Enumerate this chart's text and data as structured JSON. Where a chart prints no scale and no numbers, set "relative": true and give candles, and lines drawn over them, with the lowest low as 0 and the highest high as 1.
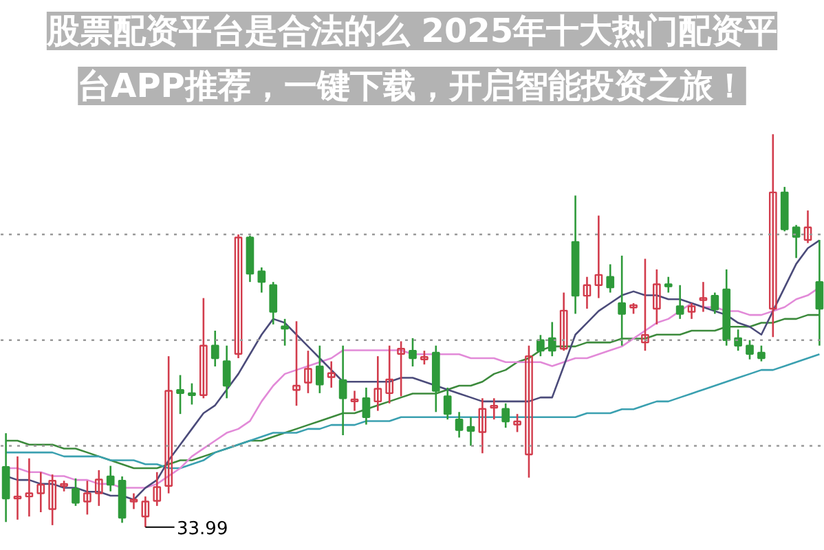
{
  "chart_data": {
    "type": "candlestick",
    "relative": true,
    "title": "股票配资平台是合法的么 2025年十大热门配资平台APP推荐，一键下载，开启智能投资之旅！",
    "categories": [
      null,
      null,
      null,
      null,
      null,
      null,
      null,
      null,
      null,
      null,
      null,
      null,
      null,
      null,
      null,
      null,
      null,
      null,
      null,
      null,
      null,
      null,
      null,
      null,
      null,
      null,
      null,
      null,
      null,
      null,
      null,
      null,
      null,
      null,
      null,
      null,
      null,
      null,
      null,
      null,
      null,
      null,
      null,
      null,
      null,
      null,
      null,
      null,
      null,
      null,
      null,
      null,
      null,
      null,
      null,
      null,
      null,
      null,
      null,
      null,
      null,
      null,
      null,
      null,
      null,
      null,
      null,
      null,
      null,
      null,
      null
    ],
    "ohlc": [
      [
        0.153,
        0.239,
        0.013,
        0.073
      ],
      [
        0.073,
        0.18,
        0.019,
        0.078
      ],
      [
        0.078,
        0.175,
        0.027,
        0.086
      ],
      [
        0.086,
        0.14,
        0.038,
        0.108
      ],
      [
        0.046,
        0.134,
        0.005,
        0.118
      ],
      [
        0.105,
        0.118,
        0.091,
        0.11
      ],
      [
        0.097,
        0.124,
        0.054,
        0.062
      ],
      [
        0.065,
        0.118,
        0.032,
        0.086
      ],
      [
        0.086,
        0.145,
        0.054,
        0.121
      ],
      [
        0.129,
        0.156,
        0.091,
        0.108
      ],
      [
        0.118,
        0.129,
        0.011,
        0.024
      ],
      [
        0.065,
        0.086,
        0.046,
        0.07
      ],
      [
        0.027,
        0.078,
        0,
        0.065
      ],
      [
        0.067,
        0.14,
        0.054,
        0.102
      ],
      [
        0.105,
        0.435,
        0.086,
        0.347
      ],
      [
        0.349,
        0.387,
        0.288,
        0.341
      ],
      [
        0.341,
        0.366,
        0.312,
        0.336
      ],
      [
        0.336,
        0.583,
        0.328,
        0.462
      ],
      [
        0.462,
        0.5,
        0.409,
        0.43
      ],
      [
        0.422,
        0.462,
        0.328,
        0.36
      ],
      [
        0.441,
        0.745,
        0.43,
        0.737
      ],
      [
        0.737,
        0.742,
        0.624,
        0.645
      ],
      [
        0.651,
        0.661,
        0.597,
        0.624
      ],
      [
        0.616,
        0.624,
        0.516,
        0.548
      ],
      [
        0.511,
        0.53,
        0.462,
        0.505
      ],
      [
        0.349,
        0.524,
        0.309,
        0.36
      ],
      [
        0.368,
        0.449,
        0.341,
        0.403
      ],
      [
        0.409,
        0.462,
        0.341,
        0.363
      ],
      [
        0.382,
        0.422,
        0.355,
        0.392
      ],
      [
        0.374,
        0.462,
        0.234,
        0.328
      ],
      [
        0.32,
        0.347,
        0.296,
        0.325
      ],
      [
        0.328,
        0.355,
        0.261,
        0.28
      ],
      [
        0.32,
        0.435,
        0.296,
        0.352
      ],
      [
        0.341,
        0.462,
        0.315,
        0.376
      ],
      [
        0.441,
        0.473,
        0.333,
        0.454
      ],
      [
        0.449,
        0.481,
        0.409,
        0.43
      ],
      [
        0.427,
        0.449,
        0.414,
        0.433
      ],
      [
        0.444,
        0.462,
        0.293,
        0.347
      ],
      [
        0.333,
        0.355,
        0.274,
        0.288
      ],
      [
        0.274,
        0.293,
        0.228,
        0.247
      ],
      [
        0.255,
        0.28,
        0.207,
        0.245
      ],
      [
        0.242,
        0.328,
        0.188,
        0.301
      ],
      [
        0.304,
        0.328,
        0.274,
        0.309
      ],
      [
        0.301,
        0.315,
        0.253,
        0.269
      ],
      [
        0.261,
        0.288,
        0.242,
        0.269
      ],
      [
        0.185,
        0.462,
        0.126,
        0.435
      ],
      [
        0.476,
        0.489,
        0.435,
        0.449
      ],
      [
        0.481,
        0.522,
        0.435,
        0.449
      ],
      [
        0.454,
        0.597,
        0.449,
        0.551
      ],
      [
        0.726,
        0.844,
        0.543,
        0.589
      ],
      [
        0.589,
        0.637,
        0.556,
        0.616
      ],
      [
        0.616,
        0.793,
        0.583,
        0.642
      ],
      [
        0.637,
        0.669,
        0.597,
        0.61
      ],
      [
        0.57,
        0.691,
        0.462,
        0.543
      ],
      [
        0.559,
        0.57,
        0.543,
        0.565
      ],
      [
        0.47,
        0.683,
        0.449,
        0.489
      ],
      [
        0.556,
        0.656,
        0.516,
        0.618
      ],
      [
        0.618,
        0.637,
        0.597,
        0.613
      ],
      [
        0.562,
        0.616,
        0.53,
        0.543
      ],
      [
        0.548,
        0.57,
        0.53,
        0.562
      ],
      [
        0.578,
        0.624,
        0.548,
        0.583
      ],
      [
        0.589,
        0.597,
        0.543,
        0.554
      ],
      [
        0.605,
        0.656,
        0.462,
        0.476
      ],
      [
        0.481,
        0.503,
        0.449,
        0.462
      ],
      [
        0.462,
        0.476,
        0.427,
        0.441
      ],
      [
        0.444,
        0.462,
        0.422,
        0.43
      ],
      [
        0.556,
        1,
        0.484,
        0.852
      ],
      [
        0.852,
        0.866,
        0.753,
        0.758
      ],
      [
        0.763,
        0.769,
        0.685,
        0.739
      ],
      [
        0.731,
        0.806,
        0.723,
        0.763
      ],
      [
        0.624,
        0.731,
        0.462,
        0.556
      ]
    ],
    "colors": [
      "#2e9a3a",
      "#d23c4c",
      "#d23c4c",
      "#d23c4c",
      "#d23c4c",
      "#d23c4c",
      "#2e9a3a",
      "#d23c4c",
      "#d23c4c",
      "#2e9a3a",
      "#2e9a3a",
      "#d23c4c",
      "#d23c4c",
      "#d23c4c",
      "#d23c4c",
      "#2e9a3a",
      "#2e9a3a",
      "#d23c4c",
      "#2e9a3a",
      "#2e9a3a",
      "#d23c4c",
      "#2e9a3a",
      "#2e9a3a",
      "#2e9a3a",
      "#2e9a3a",
      "#d23c4c",
      "#d23c4c",
      "#2e9a3a",
      "#d23c4c",
      "#2e9a3a",
      "#d23c4c",
      "#2e9a3a",
      "#d23c4c",
      "#d23c4c",
      "#d23c4c",
      "#2e9a3a",
      "#d23c4c",
      "#2e9a3a",
      "#2e9a3a",
      "#2e9a3a",
      "#2e9a3a",
      "#d23c4c",
      "#d23c4c",
      "#2e9a3a",
      "#d23c4c",
      "#d23c4c",
      "#2e9a3a",
      "#2e9a3a",
      "#d23c4c",
      "#2e9a3a",
      "#d23c4c",
      "#d23c4c",
      "#2e9a3a",
      "#2e9a3a",
      "#d23c4c",
      "#d23c4c",
      "#d23c4c",
      "#2e9a3a",
      "#2e9a3a",
      "#d23c4c",
      "#d23c4c",
      "#2e9a3a",
      "#2e9a3a",
      "#2e9a3a",
      "#2e9a3a",
      "#2e9a3a",
      "#d23c4c",
      "#2e9a3a",
      "#2e9a3a",
      "#d23c4c",
      "#2e9a3a"
    ],
    "series": [
      {
        "type": "line",
        "color": "#3c8a3c",
        "values": [
          0.22,
          0.22,
          0.21,
          0.21,
          0.21,
          0.2,
          0.2,
          0.19,
          0.18,
          0.17,
          0.16,
          0.15,
          0.15,
          0.15,
          0.16,
          0.17,
          0.17,
          0.18,
          0.19,
          0.2,
          0.21,
          0.22,
          0.22,
          0.23,
          0.24,
          0.25,
          0.26,
          0.27,
          0.28,
          0.29,
          0.29,
          0.3,
          0.31,
          0.32,
          0.33,
          0.34,
          0.34,
          0.34,
          0.35,
          0.36,
          0.36,
          0.37,
          0.39,
          0.4,
          0.42,
          0.43,
          0.45,
          0.46,
          0.46,
          0.46,
          0.47,
          0.47,
          0.47,
          0.48,
          0.48,
          0.48,
          0.49,
          0.49,
          0.49,
          0.5,
          0.5,
          0.5,
          0.51,
          0.51,
          0.51,
          0.52,
          0.52,
          0.53,
          0.53,
          0.54,
          0.54
        ]
      },
      {
        "type": "line",
        "color": "#3aa0b0",
        "values": [
          0.19,
          0.19,
          0.19,
          0.19,
          0.19,
          0.18,
          0.18,
          0.18,
          0.18,
          0.17,
          0.17,
          0.17,
          0.16,
          0.16,
          0.15,
          0.15,
          0.16,
          0.17,
          0.19,
          0.2,
          0.21,
          0.22,
          0.23,
          0.24,
          0.24,
          0.24,
          0.25,
          0.25,
          0.26,
          0.26,
          0.26,
          0.27,
          0.27,
          0.27,
          0.28,
          0.28,
          0.28,
          0.28,
          0.28,
          0.28,
          0.28,
          0.28,
          0.28,
          0.28,
          0.28,
          0.28,
          0.28,
          0.28,
          0.28,
          0.28,
          0.29,
          0.29,
          0.29,
          0.3,
          0.3,
          0.31,
          0.32,
          0.32,
          0.33,
          0.34,
          0.35,
          0.36,
          0.37,
          0.38,
          0.39,
          0.4,
          0.4,
          0.41,
          0.42,
          0.43,
          0.44
        ]
      },
      {
        "type": "line",
        "color": "#e28ad8",
        "values": [
          0.15,
          0.15,
          0.14,
          0.14,
          0.13,
          0.13,
          0.12,
          0.12,
          0.11,
          0.11,
          0.1,
          0.1,
          0.1,
          0.11,
          0.13,
          0.15,
          0.18,
          0.2,
          0.22,
          0.24,
          0.25,
          0.27,
          0.32,
          0.36,
          0.39,
          0.4,
          0.41,
          0.42,
          0.43,
          0.45,
          0.45,
          0.45,
          0.45,
          0.45,
          0.45,
          0.44,
          0.44,
          0.44,
          0.44,
          0.44,
          0.43,
          0.43,
          0.43,
          0.42,
          0.42,
          0.42,
          0.42,
          0.41,
          0.42,
          0.43,
          0.43,
          0.44,
          0.45,
          0.46,
          0.48,
          0.5,
          0.52,
          0.53,
          0.55,
          0.57,
          0.56,
          0.56,
          0.55,
          0.55,
          0.54,
          0.54,
          0.55,
          0.56,
          0.58,
          0.59,
          0.61
        ]
      },
      {
        "type": "line",
        "color": "#4b4b7a",
        "values": [
          0.13,
          0.12,
          0.12,
          0.11,
          0.11,
          0.1,
          0.1,
          0.09,
          0.09,
          0.08,
          0.08,
          0.07,
          0.1,
          0.12,
          0.17,
          0.21,
          0.25,
          0.29,
          0.31,
          0.35,
          0.39,
          0.44,
          0.49,
          0.53,
          0.52,
          0.49,
          0.46,
          0.43,
          0.4,
          0.37,
          0.37,
          0.37,
          0.37,
          0.37,
          0.38,
          0.38,
          0.37,
          0.36,
          0.35,
          0.34,
          0.33,
          0.32,
          0.32,
          0.32,
          0.32,
          0.32,
          0.33,
          0.33,
          0.41,
          0.49,
          0.52,
          0.55,
          0.57,
          0.59,
          0.6,
          0.59,
          0.59,
          0.58,
          0.58,
          0.57,
          0.56,
          0.55,
          0.54,
          0.52,
          0.51,
          0.49,
          0.55,
          0.61,
          0.67,
          0.71,
          0.73
        ]
      }
    ],
    "ref_lines": [
      {
        "axis": "y",
        "value": 0.745,
        "color": "#999999",
        "line_style": "dotted"
      },
      {
        "axis": "y",
        "value": 0.476,
        "color": "#999999",
        "line_style": "dotted"
      },
      {
        "axis": "y",
        "value": 0.207,
        "color": "#999999",
        "line_style": "dotted"
      }
    ],
    "annotations": [
      "33.99"
    ]
  }
}
